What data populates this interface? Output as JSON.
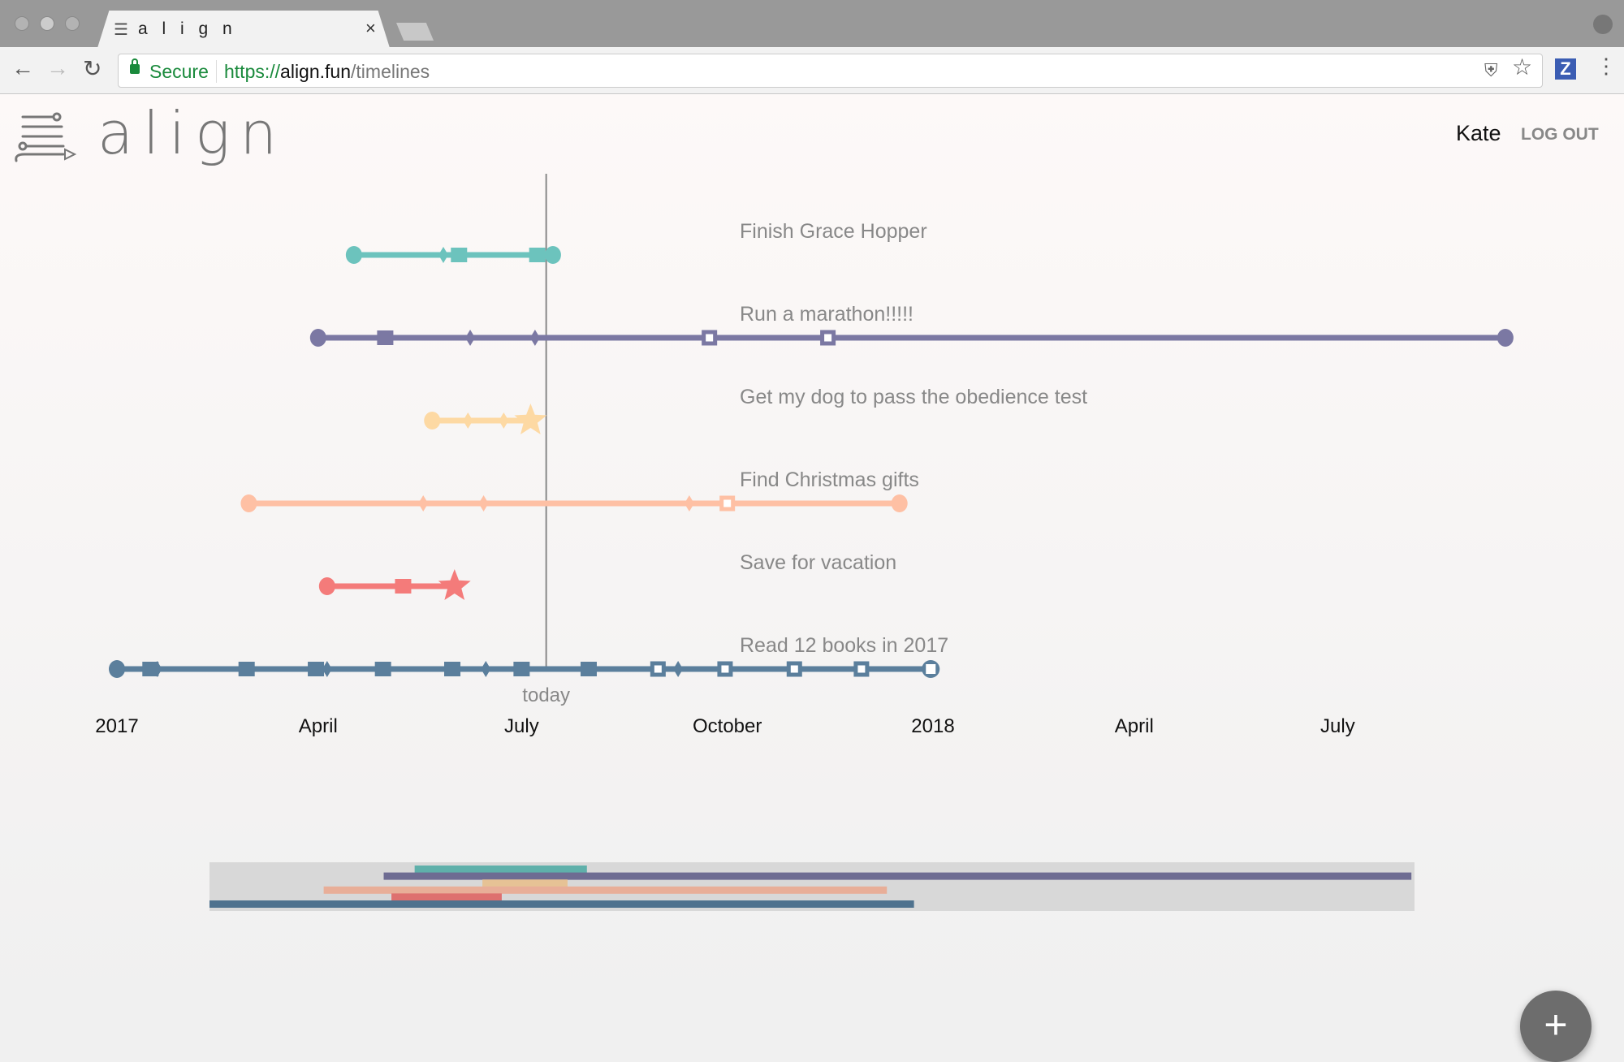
{
  "browser": {
    "tab_title": "a l i g n",
    "secure_label": "Secure",
    "url_scheme": "https://",
    "url_host": "align.fun",
    "url_path": "/timelines",
    "extension_label": "Z"
  },
  "header": {
    "logo_text": "align",
    "user_name": "Kate",
    "logout_label": "LOG OUT"
  },
  "colors": {
    "teal": "#6cc3bd",
    "purple": "#7b78a3",
    "yellow": "#fdd9a3",
    "peach": "#fec0a4",
    "red": "#f47b7a",
    "blue": "#5b7f9c"
  },
  "fab_label": "+",
  "chart_data": {
    "type": "timeline",
    "today": "2017-07-12",
    "today_label": "today",
    "x_range": [
      "2016-12-20",
      "2018-10-01"
    ],
    "tick_labels": [
      {
        "date": "2017-01-01",
        "label": "2017"
      },
      {
        "date": "2017-04-01",
        "label": "April"
      },
      {
        "date": "2017-07-01",
        "label": "July"
      },
      {
        "date": "2017-10-01",
        "label": "October"
      },
      {
        "date": "2018-01-01",
        "label": "2018"
      },
      {
        "date": "2018-04-01",
        "label": "April"
      },
      {
        "date": "2018-07-01",
        "label": "July"
      }
    ],
    "timelines": [
      {
        "name": "Finish Grace Hopper",
        "color": "#6cc3bd",
        "minimap_color": "#5fb0aa",
        "markers": [
          [
            "2017-04-17",
            "circle"
          ],
          [
            "2017-05-27",
            "diamond"
          ],
          [
            "2017-06-03",
            "square"
          ],
          [
            "2017-07-08",
            "square"
          ],
          [
            "2017-07-15",
            "circle"
          ]
        ]
      },
      {
        "name": "Run a marathon!!!!!",
        "color": "#7b78a3",
        "minimap_color": "#6e6c92",
        "markers": [
          [
            "2017-04-01",
            "circle"
          ],
          [
            "2017-05-01",
            "square"
          ],
          [
            "2017-06-08",
            "diamond"
          ],
          [
            "2017-07-07",
            "diamond"
          ],
          [
            "2017-09-23",
            "open-square"
          ],
          [
            "2017-11-15",
            "open-square"
          ],
          [
            "2018-09-14",
            "circle"
          ]
        ]
      },
      {
        "name": "Get my dog to pass the obedience test",
        "color": "#fdd9a3",
        "minimap_color": "#e6c295",
        "markers": [
          [
            "2017-05-22",
            "circle"
          ],
          [
            "2017-06-07",
            "diamond"
          ],
          [
            "2017-06-23",
            "diamond"
          ],
          [
            "2017-07-05",
            "star"
          ]
        ]
      },
      {
        "name": "Find Christmas gifts",
        "color": "#fec0a4",
        "minimap_color": "#e8ae98",
        "markers": [
          [
            "2017-03-01",
            "circle"
          ],
          [
            "2017-05-18",
            "diamond"
          ],
          [
            "2017-06-14",
            "diamond"
          ],
          [
            "2017-09-14",
            "diamond"
          ],
          [
            "2017-10-01",
            "open-square"
          ],
          [
            "2017-12-17",
            "circle"
          ]
        ]
      },
      {
        "name": "Save for vacation",
        "color": "#f47b7a",
        "minimap_color": "#de706f",
        "markers": [
          [
            "2017-04-05",
            "circle"
          ],
          [
            "2017-05-09",
            "square"
          ],
          [
            "2017-06-01",
            "star"
          ]
        ]
      },
      {
        "name": "Read 12 books in 2017",
        "color": "#5b7f9c",
        "minimap_color": "#4f728e",
        "markers": [
          [
            "2017-01-01",
            "circle"
          ],
          [
            "2017-01-16",
            "square"
          ],
          [
            "2017-01-19",
            "diamond"
          ],
          [
            "2017-02-28",
            "square"
          ],
          [
            "2017-03-31",
            "square"
          ],
          [
            "2017-04-05",
            "diamond"
          ],
          [
            "2017-04-30",
            "square"
          ],
          [
            "2017-05-31",
            "square"
          ],
          [
            "2017-06-15",
            "diamond"
          ],
          [
            "2017-07-01",
            "square"
          ],
          [
            "2017-07-31",
            "square"
          ],
          [
            "2017-08-31",
            "open-square"
          ],
          [
            "2017-09-09",
            "diamond"
          ],
          [
            "2017-09-30",
            "open-square"
          ],
          [
            "2017-10-31",
            "open-square"
          ],
          [
            "2017-11-30",
            "open-square"
          ],
          [
            "2017-12-31",
            "open-circle"
          ]
        ]
      }
    ]
  }
}
